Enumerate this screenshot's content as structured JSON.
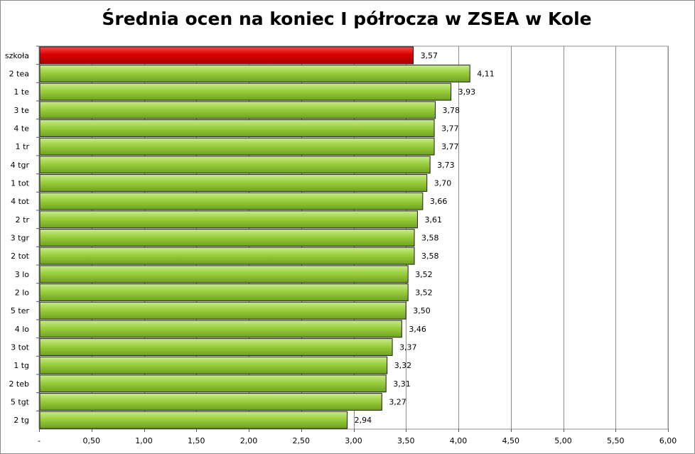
{
  "chart_data": {
    "type": "bar",
    "orientation": "horizontal",
    "title": "Średnia ocen na koniec I półrocza w ZSEA w Kole",
    "categories": [
      "szkoła",
      "2 tea",
      "1 te",
      "3 te",
      "4 te",
      "1 tr",
      "4 tgr",
      "1 tot",
      "4 tot",
      "2 tr",
      "3 tgr",
      "2 tot",
      "3 lo",
      "2 lo",
      "5 ter",
      "4 lo",
      "3 tot",
      "1 tg",
      "2 teb",
      "5 tgt",
      "2 tg"
    ],
    "values": [
      3.57,
      4.11,
      3.93,
      3.78,
      3.77,
      3.77,
      3.73,
      3.7,
      3.66,
      3.61,
      3.58,
      3.58,
      3.52,
      3.52,
      3.5,
      3.46,
      3.37,
      3.32,
      3.31,
      3.27,
      2.94
    ],
    "value_labels": [
      "3,57",
      "4,11",
      "3,93",
      "3,78",
      "3,77",
      "3,77",
      "3,73",
      "3,70",
      "3,66",
      "3,61",
      "3,58",
      "3,58",
      "3,52",
      "3,52",
      "3,50",
      "3,46",
      "3,37",
      "3,32",
      "3,31",
      "3,27",
      "2,94"
    ],
    "highlight_index": 0,
    "xlim": [
      0,
      6
    ],
    "x_ticks": [
      0,
      0.5,
      1,
      1.5,
      2,
      2.5,
      3,
      3.5,
      4,
      4.5,
      5,
      5.5,
      6
    ],
    "x_tick_labels": [
      "-",
      "0,50",
      "1,00",
      "1,50",
      "2,00",
      "2,50",
      "3,00",
      "3,50",
      "4,00",
      "4,50",
      "5,00",
      "5,50",
      "6,00"
    ],
    "xlabel": "",
    "ylabel": "",
    "grid": "vertical",
    "legend": "none",
    "colors": {
      "bar": "#8fc43a",
      "bar_highlight": "#e00000",
      "grid": "#8c8c8c"
    }
  }
}
